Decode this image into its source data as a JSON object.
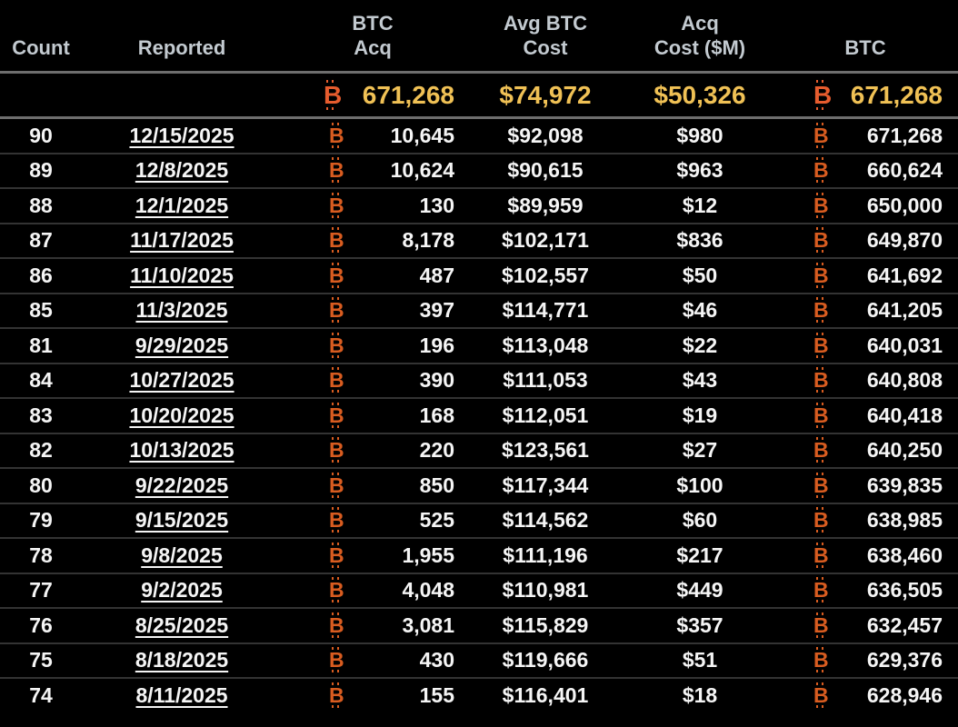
{
  "icons": {
    "bitcoin": "B"
  },
  "colors": {
    "background": "#000000",
    "header_text": "#c3cad0",
    "row_text": "#f5f5f5",
    "bitcoin_orange": "#d85c20",
    "summary_bitcoin_orange": "#e65c2e",
    "summary_gold": "#f0c155",
    "divider_strong": "#6e6e6e",
    "row_divider": "#333333"
  },
  "table": {
    "headers": {
      "count": "Count",
      "reported": "Reported",
      "btc_acq_line1": "BTC",
      "btc_acq_line2": "Acq",
      "avg_cost_line1": "Avg BTC",
      "avg_cost_line2": "Cost",
      "acq_cost_line1": "Acq",
      "acq_cost_line2": "Cost ($M)",
      "btc": "BTC"
    },
    "summary": {
      "btc_acq": "671,268",
      "avg_btc_cost": "$74,972",
      "acq_cost_m": "$50,326",
      "btc_total": "671,268"
    },
    "rows": [
      {
        "count": "90",
        "reported": "12/15/2025",
        "btc_acq": "10,645",
        "avg_btc_cost": "$92,098",
        "acq_cost_m": "$980",
        "btc_total": "671,268"
      },
      {
        "count": "89",
        "reported": "12/8/2025",
        "btc_acq": "10,624",
        "avg_btc_cost": "$90,615",
        "acq_cost_m": "$963",
        "btc_total": "660,624"
      },
      {
        "count": "88",
        "reported": "12/1/2025",
        "btc_acq": "130",
        "avg_btc_cost": "$89,959",
        "acq_cost_m": "$12",
        "btc_total": "650,000"
      },
      {
        "count": "87",
        "reported": "11/17/2025",
        "btc_acq": "8,178",
        "avg_btc_cost": "$102,171",
        "acq_cost_m": "$836",
        "btc_total": "649,870"
      },
      {
        "count": "86",
        "reported": "11/10/2025",
        "btc_acq": "487",
        "avg_btc_cost": "$102,557",
        "acq_cost_m": "$50",
        "btc_total": "641,692"
      },
      {
        "count": "85",
        "reported": "11/3/2025",
        "btc_acq": "397",
        "avg_btc_cost": "$114,771",
        "acq_cost_m": "$46",
        "btc_total": "641,205"
      },
      {
        "count": "81",
        "reported": "9/29/2025",
        "btc_acq": "196",
        "avg_btc_cost": "$113,048",
        "acq_cost_m": "$22",
        "btc_total": "640,031"
      },
      {
        "count": "84",
        "reported": "10/27/2025",
        "btc_acq": "390",
        "avg_btc_cost": "$111,053",
        "acq_cost_m": "$43",
        "btc_total": "640,808"
      },
      {
        "count": "83",
        "reported": "10/20/2025",
        "btc_acq": "168",
        "avg_btc_cost": "$112,051",
        "acq_cost_m": "$19",
        "btc_total": "640,418"
      },
      {
        "count": "82",
        "reported": "10/13/2025",
        "btc_acq": "220",
        "avg_btc_cost": "$123,561",
        "acq_cost_m": "$27",
        "btc_total": "640,250"
      },
      {
        "count": "80",
        "reported": "9/22/2025",
        "btc_acq": "850",
        "avg_btc_cost": "$117,344",
        "acq_cost_m": "$100",
        "btc_total": "639,835"
      },
      {
        "count": "79",
        "reported": "9/15/2025",
        "btc_acq": "525",
        "avg_btc_cost": "$114,562",
        "acq_cost_m": "$60",
        "btc_total": "638,985"
      },
      {
        "count": "78",
        "reported": "9/8/2025",
        "btc_acq": "1,955",
        "avg_btc_cost": "$111,196",
        "acq_cost_m": "$217",
        "btc_total": "638,460"
      },
      {
        "count": "77",
        "reported": "9/2/2025",
        "btc_acq": "4,048",
        "avg_btc_cost": "$110,981",
        "acq_cost_m": "$449",
        "btc_total": "636,505"
      },
      {
        "count": "76",
        "reported": "8/25/2025",
        "btc_acq": "3,081",
        "avg_btc_cost": "$115,829",
        "acq_cost_m": "$357",
        "btc_total": "632,457"
      },
      {
        "count": "75",
        "reported": "8/18/2025",
        "btc_acq": "430",
        "avg_btc_cost": "$119,666",
        "acq_cost_m": "$51",
        "btc_total": "629,376"
      },
      {
        "count": "74",
        "reported": "8/11/2025",
        "btc_acq": "155",
        "avg_btc_cost": "$116,401",
        "acq_cost_m": "$18",
        "btc_total": "628,946"
      }
    ]
  }
}
